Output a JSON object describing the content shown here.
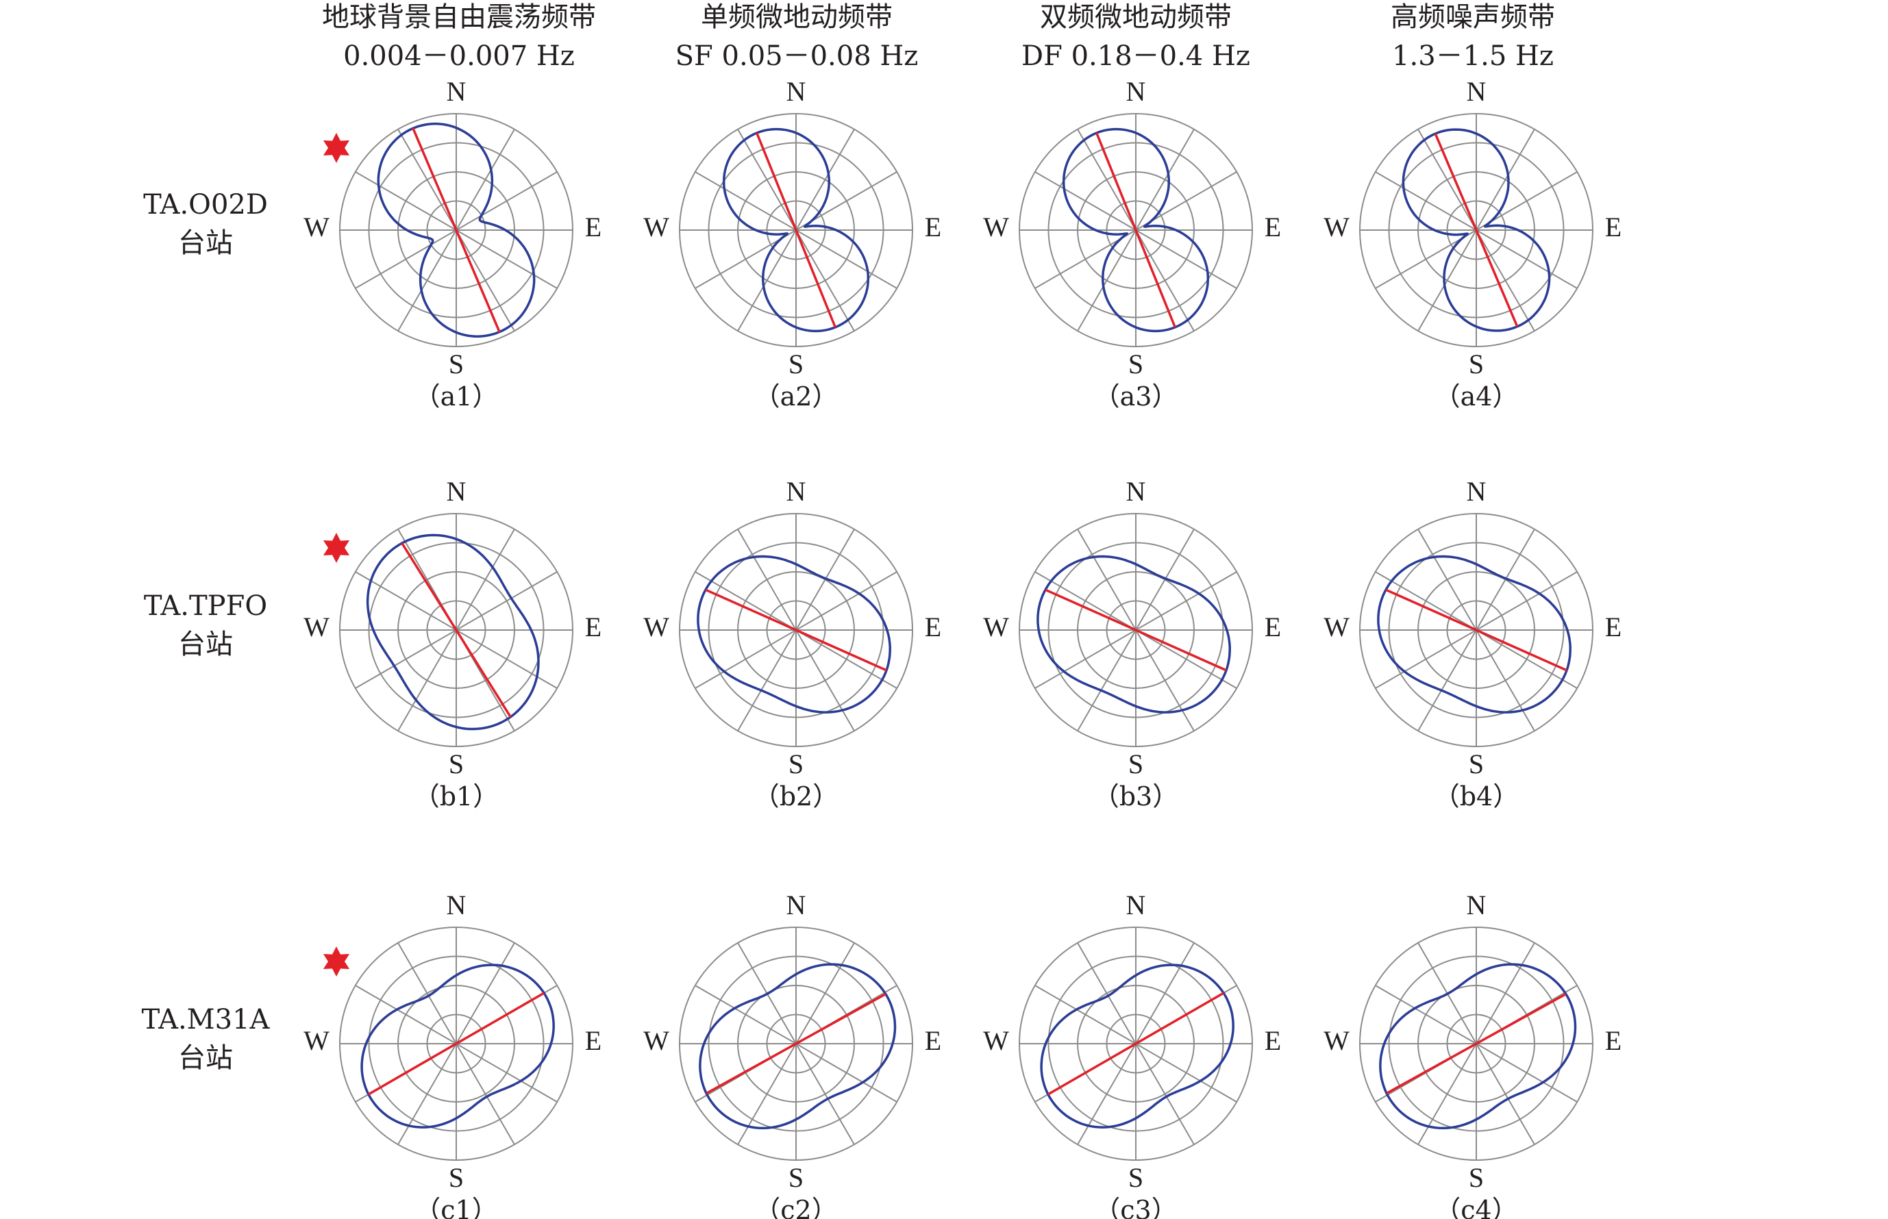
{
  "column_headers": [
    {
      "line1": "地球背景自由震荡频带",
      "line2": "0.004－0.007 Hz"
    },
    {
      "line1": "单频微地动频带",
      "line2": "SF 0.05－0.08 Hz"
    },
    {
      "line1": "双频微地动频带",
      "line2": "DF 0.18－0.4 Hz"
    },
    {
      "line1": "高频噪声频带",
      "line2": "1.3－1.5 Hz"
    }
  ],
  "row_headers": [
    {
      "line1": "TA.O02D",
      "line2": "台站"
    },
    {
      "line1": "TA.TPFO",
      "line2": "台站"
    },
    {
      "line1": "TA.M31A",
      "line2": "台站"
    }
  ],
  "directions": {
    "n": "N",
    "s": "S",
    "e": "E",
    "w": "W"
  },
  "colors": {
    "petal": "#2b3d96",
    "axis": "#e32028",
    "grid": "#8c8c8c",
    "star": "#e32028"
  },
  "star_icon": "red-star-icon",
  "chart_data": [
    {
      "type": "polar",
      "panel": "（a1）",
      "station": "TA.O02D",
      "band": "0.004－0.007 Hz",
      "azimuth_deg": 157,
      "petal": {
        "dir_amp": 0.95,
        "perp_amp": 0.22,
        "side_bias": 0.0
      },
      "star": true
    },
    {
      "type": "polar",
      "panel": "（a2）",
      "station": "TA.O02D",
      "band": "SF 0.05－0.08 Hz",
      "azimuth_deg": 158,
      "petal": {
        "dir_amp": 0.9,
        "perp_amp": 0.08,
        "side_bias": 0.0
      },
      "star": false
    },
    {
      "type": "polar",
      "panel": "（a3）",
      "station": "TA.O02D",
      "band": "DF 0.18－0.4 Hz",
      "azimuth_deg": 158,
      "petal": {
        "dir_amp": 0.9,
        "perp_amp": 0.08,
        "side_bias": 0.0
      },
      "star": false
    },
    {
      "type": "polar",
      "panel": "（a4）",
      "station": "TA.O02D",
      "band": "1.3－1.5 Hz",
      "azimuth_deg": 157,
      "petal": {
        "dir_amp": 0.9,
        "perp_amp": 0.08,
        "side_bias": 0.0
      },
      "star": false
    },
    {
      "type": "polar",
      "panel": "（b1）",
      "station": "TA.TPFO",
      "band": "0.004－0.007 Hz",
      "azimuth_deg": 148,
      "petal": {
        "dir_amp": 0.88,
        "perp_amp": 0.58,
        "side_bias": 0.06
      },
      "star": true
    },
    {
      "type": "polar",
      "panel": "（b2）",
      "station": "TA.TPFO",
      "band": "SF 0.05－0.08 Hz",
      "azimuth_deg": 114,
      "petal": {
        "dir_amp": 0.85,
        "perp_amp": 0.55,
        "side_bias": 0.08
      },
      "star": false
    },
    {
      "type": "polar",
      "panel": "（b3）",
      "station": "TA.TPFO",
      "band": "DF 0.18－0.4 Hz",
      "azimuth_deg": 114,
      "petal": {
        "dir_amp": 0.85,
        "perp_amp": 0.55,
        "side_bias": 0.08
      },
      "star": false
    },
    {
      "type": "polar",
      "panel": "（b4）",
      "station": "TA.TPFO",
      "band": "1.3－1.5 Hz",
      "azimuth_deg": 114,
      "petal": {
        "dir_amp": 0.85,
        "perp_amp": 0.55,
        "side_bias": 0.08
      },
      "star": false
    },
    {
      "type": "polar",
      "panel": "（c1）",
      "station": "TA.M31A",
      "band": "0.004－0.007 Hz",
      "azimuth_deg": 60,
      "petal": {
        "dir_amp": 0.87,
        "perp_amp": 0.5,
        "side_bias": 0.05
      },
      "star": true
    },
    {
      "type": "polar",
      "panel": "（c2）",
      "station": "TA.M31A",
      "band": "SF 0.05－0.08 Hz",
      "azimuth_deg": 61,
      "petal": {
        "dir_amp": 0.88,
        "perp_amp": 0.52,
        "side_bias": 0.05
      },
      "star": false
    },
    {
      "type": "polar",
      "panel": "（c3）",
      "station": "TA.M31A",
      "band": "DF 0.18－0.4 Hz",
      "azimuth_deg": 60,
      "petal": {
        "dir_amp": 0.87,
        "perp_amp": 0.5,
        "side_bias": 0.05
      },
      "star": false
    },
    {
      "type": "polar",
      "panel": "（c4）",
      "station": "TA.M31A",
      "band": "1.3－1.5 Hz",
      "azimuth_deg": 61,
      "petal": {
        "dir_amp": 0.88,
        "perp_amp": 0.52,
        "side_bias": 0.05
      },
      "star": false
    }
  ]
}
